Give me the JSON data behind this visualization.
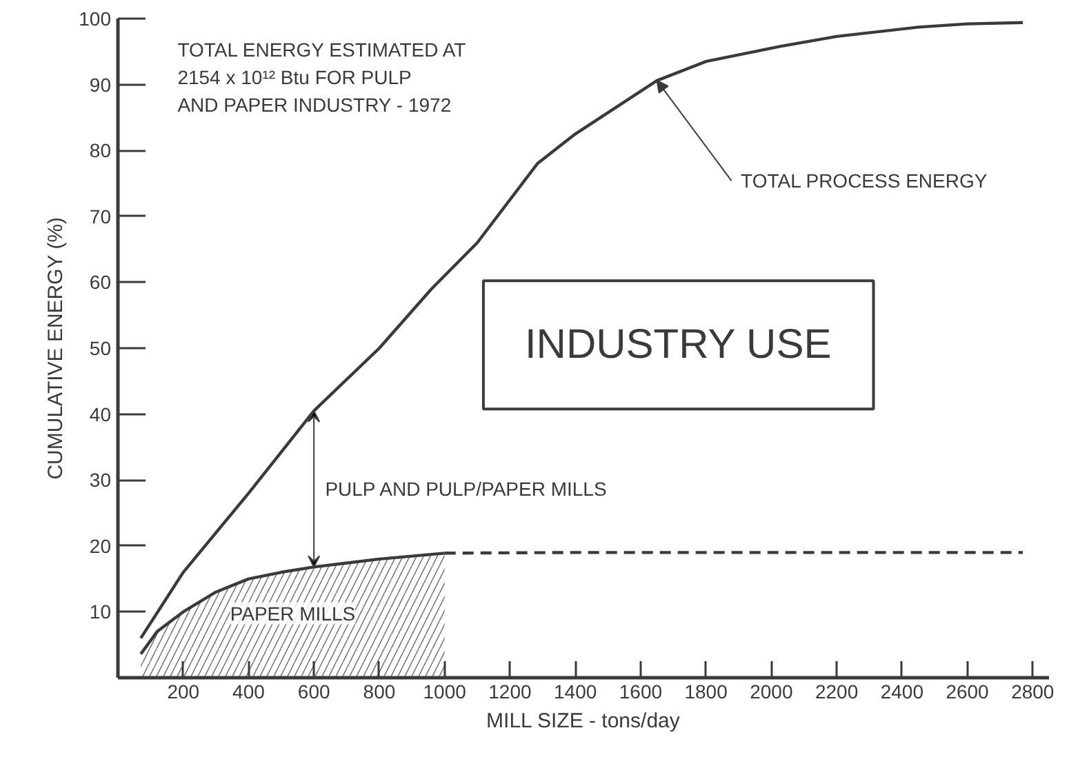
{
  "chart_data": {
    "type": "line",
    "xlabel": "MILL SIZE - tons/day",
    "ylabel": "CUMULATIVE ENERGY (%)",
    "xlim": [
      0,
      2850
    ],
    "ylim": [
      0,
      100
    ],
    "xticks": [
      200,
      400,
      600,
      800,
      1000,
      1200,
      1400,
      1600,
      1800,
      2000,
      2200,
      2400,
      2600,
      2800
    ],
    "yticks": [
      10,
      20,
      30,
      40,
      50,
      60,
      70,
      80,
      90,
      100
    ],
    "grid": false,
    "series": [
      {
        "color": "#3a3a3a",
        "x": [
          70,
          200,
          400,
          600,
          800,
          960,
          1100,
          1284,
          1400,
          1650,
          1800,
          2029,
          2200,
          2450,
          2600,
          2770
        ],
        "values": [
          6,
          16,
          28,
          40.5,
          50,
          59,
          66,
          78,
          82.5,
          90.6,
          93.5,
          95.8,
          97.3,
          98.7,
          99.2,
          99.4
        ]
      },
      {
        "type": "area",
        "name": "PAPER MILLS",
        "color": "#3a3a3a",
        "x": [
          70,
          120,
          200,
          300,
          400,
          500,
          600,
          800,
          1000
        ],
        "values": [
          3.6,
          7,
          10,
          13,
          15,
          16,
          16.8,
          18,
          18.9
        ]
      },
      {
        "line_style": "dashed",
        "color": "#3a3a3a",
        "x": [
          1000,
          1400,
          1800,
          2200,
          2770
        ],
        "values": [
          18.9,
          19,
          19,
          19,
          19
        ]
      }
    ],
    "annotations": [
      "TOTAL ENERGY ESTIMATED AT\n2154 x 10¹² Btu FOR PULP\nAND PAPER INDUSTRY - 1972",
      "INDUSTRY USE",
      {
        "text": "TOTAL PROCESS ENERGY",
        "x": 1650,
        "y": 90.6
      },
      "PULP AND PULP/PAPER MILLS"
    ]
  }
}
